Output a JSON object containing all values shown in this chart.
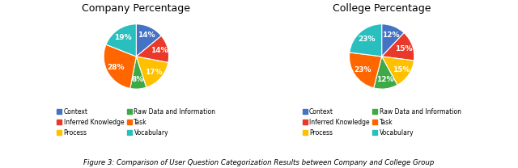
{
  "company": {
    "title": "Company Percentage",
    "values": [
      14,
      14,
      17,
      8,
      28,
      19
    ],
    "colors": [
      "#4472C4",
      "#E8392A",
      "#FFC000",
      "#3DAA47",
      "#FF6600",
      "#2ABFBF"
    ]
  },
  "college": {
    "title": "College Percentage",
    "values": [
      12,
      15,
      15,
      12,
      23,
      23
    ],
    "colors": [
      "#4472C4",
      "#E8392A",
      "#FFC000",
      "#3DAA47",
      "#FF6600",
      "#2ABFBF"
    ]
  },
  "legend_labels_col1": [
    "Context",
    "Process",
    "Task"
  ],
  "legend_labels_col2": [
    "Inferred Knowledge",
    "Raw Data and Information",
    "Vocabulary"
  ],
  "legend_colors_col1": [
    "#4472C4",
    "#FFC000",
    "#FF6600"
  ],
  "legend_colors_col2": [
    "#E8392A",
    "#3DAA47",
    "#2ABFBF"
  ],
  "caption": "Figure 3: Comparison of User Question Categorization Results between Company and College Group",
  "background_color": "#FFFFFF",
  "text_color": "#FFFFFF",
  "startangle": 90
}
